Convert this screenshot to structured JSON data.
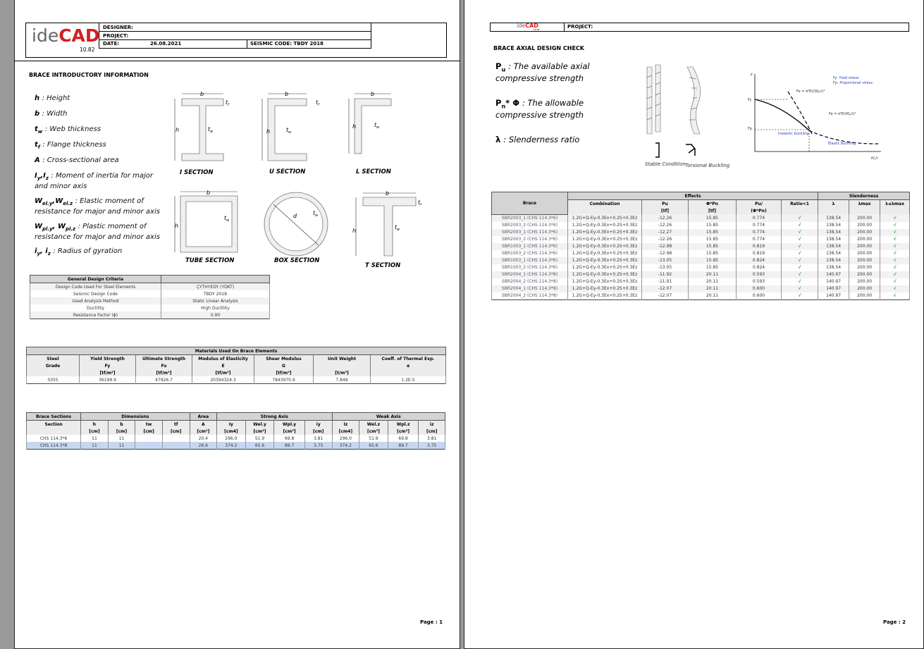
{
  "page1": {
    "header": {
      "logo_ide": "ide",
      "logo_cad": "CAD",
      "version": "10.82",
      "designer": "DESIGNER:",
      "project": "PROJECT:",
      "date_label": "DATE:",
      "date": "26.08.2021",
      "seismic": "SEISMIC CODE: TBDY 2018"
    },
    "title": "BRACE INTRODUCTORY INFORMATION",
    "definitions": [
      {
        "terms": [
          [
            "h",
            null
          ]
        ],
        "desc": ": Height"
      },
      {
        "terms": [
          [
            "b",
            null
          ]
        ],
        "desc": ": Width"
      },
      {
        "terms": [
          [
            "t",
            "w"
          ]
        ],
        "desc": ": Web thickness"
      },
      {
        "terms": [
          [
            "t",
            "f"
          ]
        ],
        "desc": ": Flange thickness"
      },
      {
        "terms": [
          [
            "A",
            null
          ]
        ],
        "desc": ": Cross-sectional area"
      },
      {
        "terms": [
          [
            "I",
            "y"
          ],
          [
            ",I",
            "z"
          ]
        ],
        "desc": ": Moment of inertia for major and minor axis"
      },
      {
        "terms": [
          [
            "W",
            "el.y"
          ],
          [
            ",W",
            "el.z"
          ]
        ],
        "desc": ": Elastic moment of resistance for major and minor axis"
      },
      {
        "terms": [
          [
            "W",
            "pl.y"
          ],
          [
            ", W",
            "pl.z"
          ]
        ],
        "desc": ": Plastic moment of resistance for major and minor axis"
      },
      {
        "terms": [
          [
            "i",
            "y"
          ],
          [
            ", i",
            "z"
          ]
        ],
        "desc": ": Radius of gyration"
      }
    ],
    "sections": {
      "labels": [
        "I SECTION",
        "U SECTION",
        "L SECTION",
        "TUBE SECTION",
        "BOX SECTION",
        "T SECTION"
      ],
      "dims": {
        "b": "b",
        "h": "h",
        "t": "t",
        "f": "f",
        "w": "w",
        "d": "d"
      }
    },
    "criteria": {
      "title": "General Design Criteria",
      "rows": [
        [
          "Design Code Used For Steel Elements",
          "ÇYTHYEDY (YDKT)"
        ],
        [
          "Seismic Design Code",
          "TBDY 2018"
        ],
        [
          "Used Analysis Method",
          "Static Linear Analysis"
        ],
        [
          "Ductility",
          "High Ductility"
        ],
        [
          "Resistance Factor (ϕ)",
          "0.90"
        ]
      ]
    },
    "materials": {
      "title": "Materials Used On Brace Elements",
      "header": [
        [
          "Steel",
          "Yield Strength",
          "Ultimate Strength",
          "Modulus of Elasticity",
          "Shear Modulus",
          "Unit Weight",
          "Coeff. of Thermal Exp."
        ],
        [
          "Grade",
          "Fy",
          "Fu",
          "E",
          "G",
          null,
          "α"
        ],
        [
          null,
          "[tf/m²]",
          "[tf/m²]",
          "[tf/m²]",
          "[tf/m²]",
          "[t/m³]",
          null
        ]
      ],
      "rows": [
        [
          "S355",
          "36199.9",
          "47926.7",
          "20394324.3",
          "7843970.9",
          "7.849",
          "1.2E-5"
        ]
      ]
    },
    "sections_table": {
      "groups": [
        "Brace Sections",
        "Dimensions",
        "Area",
        "Strong Axis",
        "Weak Axis"
      ],
      "header": [
        [
          "Section",
          "h",
          "b",
          "tw",
          "tf",
          "A",
          "Iy",
          "Wel.y",
          "Wpl.y",
          "iy",
          "Iz",
          "Wel.z",
          "Wpl.z",
          "iz"
        ],
        [
          null,
          "[cm]",
          "[cm]",
          "[cm]",
          "[cm]",
          "[cm²]",
          "[cm4]",
          "[cm³]",
          "[cm³]",
          "[cm]",
          "[cm4]",
          "[cm³]",
          "[cm³]",
          "[cm]"
        ]
      ],
      "rows": [
        [
          "CHS 114.3*6",
          "11",
          "11",
          null,
          null,
          "20.4",
          "296.0",
          "51.9",
          "69.8",
          "3.81",
          "296.0",
          "51.9",
          "69.8",
          "3.81"
        ],
        [
          "CHS 114.3*8",
          "11",
          "11",
          null,
          null,
          "26.6",
          "374.2",
          "65.6",
          "89.7",
          "3.75",
          "374.2",
          "65.6",
          "89.7",
          "3.75"
        ]
      ]
    },
    "footer": "Page : 1"
  },
  "page2": {
    "header": {
      "logo_ide": "ide",
      "logo_cad": "CAD",
      "version": "10.82",
      "project": "PROJECT:"
    },
    "title": "BRACE AXIAL DESIGN CHECK",
    "definitions": [
      {
        "terms": [
          [
            "P",
            "u"
          ]
        ],
        "desc": ": The available axial compressive strength"
      },
      {
        "terms": [
          [
            "P",
            "n"
          ],
          [
            "* Φ",
            null
          ]
        ],
        "desc": ": The allowable compressive strength"
      },
      {
        "terms": [
          [
            "λ",
            null
          ]
        ],
        "desc": ": Slenderness ratio"
      }
    ],
    "figure": {
      "stable": "Stable Condition",
      "torsional": "Torsional Buckling",
      "f": "F",
      "fy": "Fy",
      "fp": "Fp",
      "legend_fy": "Fy: Yield stress",
      "legend_fp": "Fp: Proportional stress",
      "inelastic": "Inelastic buckling",
      "elastic": "Elastic buckling",
      "axis_x": "KL/r",
      "formula_t": "Fe = π²Et/(KL/r)²",
      "formula": "Fe = π²E/(KL/r)²"
    },
    "table": {
      "groups": [
        "Brace",
        "Effects",
        "Slenderness"
      ],
      "header": [
        [
          "Combination",
          "Pu",
          "Φ*Pn",
          "Pu/",
          "Ratio<1",
          "λ",
          "λmax",
          "λ≤λmax"
        ],
        [
          null,
          "[tf]",
          "[tf]",
          "(Φ*Pn)",
          null,
          null,
          null,
          null
        ]
      ],
      "rows": [
        [
          "SBR2003_1 (CHS 114.3*6)",
          "1.2G+Q-Ey-0.3Ex+0.2S+0.3Ez",
          "-12.26",
          "15.85",
          "0.774",
          "√",
          "138.54",
          "200.00",
          "√"
        ],
        [
          "SBR2003_2 (CHS 114.3*6)",
          "1.2G+Q-Ey-0.3Ex+0.2S+0.3Ez",
          "-12.26",
          "15.85",
          "0.774",
          "√",
          "138.54",
          "200.00",
          "√"
        ],
        [
          "SBR2003_1 (CHS 114.3*6)",
          "1.2G+Q-Ey-0.3Ex+0.2S+0.3Ez",
          "-12.27",
          "15.85",
          "0.774",
          "√",
          "138.54",
          "200.00",
          "√"
        ],
        [
          "SBR2003_2 (CHS 114.3*6)",
          "1.2G+Q-Ey-0.3Ex+0.2S+0.3Ez",
          "-12.26",
          "15.85",
          "0.774",
          "√",
          "138.54",
          "200.00",
          "√"
        ],
        [
          "SBR1003_1 (CHS 114.3*6)",
          "1.2G+Q-Ey-0.3Ex+0.2S+0.3Ez",
          "-12.98",
          "15.85",
          "0.819",
          "√",
          "138.54",
          "200.00",
          "√"
        ],
        [
          "SBR1003_2 (CHS 114.3*6)",
          "1.2G+Q-Ey-0.3Ex+0.2S+0.3Ez",
          "-12.98",
          "15.85",
          "0.819",
          "√",
          "138.54",
          "200.00",
          "√"
        ],
        [
          "SBR1003_1 (CHS 114.3*6)",
          "1.2G+Q-Ey-0.3Ex+0.2S+0.3Ez",
          "-13.05",
          "15.85",
          "0.824",
          "√",
          "138.54",
          "200.00",
          "√"
        ],
        [
          "SBR1003_2 (CHS 114.3*6)",
          "1.2G+Q-Ey-0.3Ex+0.2S+0.3Ez",
          "-13.05",
          "15.85",
          "0.824",
          "√",
          "138.54",
          "200.00",
          "√"
        ],
        [
          "SBR2004_1 (CHS 114.3*8)",
          "1.2G+Q-Ey-0.3Ex+0.2S+0.3Ez",
          "-11.92",
          "20.11",
          "0.593",
          "√",
          "140.97",
          "200.00",
          "√"
        ],
        [
          "SBR2004_2 (CHS 114.3*8)",
          "1.2G+Q-Ey-0.3Ex+0.2S+0.3Ez",
          "-11.91",
          "20.11",
          "0.593",
          "√",
          "140.97",
          "200.00",
          "√"
        ],
        [
          "SBR2004_1 (CHS 114.3*8)",
          "1.2G+Q-Ey-0.3Ex+0.2S+0.3Ez",
          "-12.07",
          "20.11",
          "0.600",
          "√",
          "140.97",
          "200.00",
          "√"
        ],
        [
          "SBR2004_2 (CHS 114.3*8)",
          "1.2G+Q-Ey-0.3Ex+0.2S+0.3Ez",
          "-12.07",
          "20.11",
          "0.600",
          "√",
          "140.97",
          "200.00",
          "√"
        ]
      ]
    },
    "footer": "Page : 2"
  }
}
